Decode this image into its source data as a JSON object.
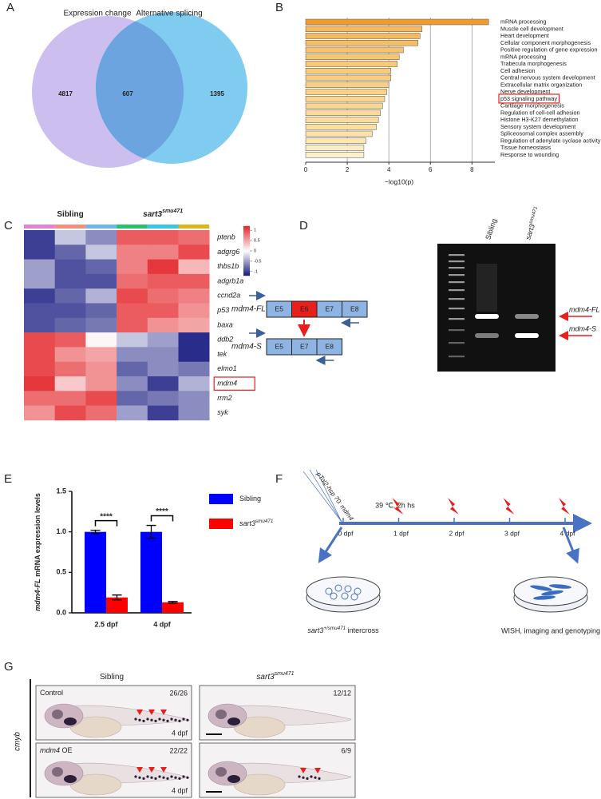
{
  "panel_labels": [
    "A",
    "B",
    "C",
    "D",
    "E",
    "F",
    "G"
  ],
  "chart_data": [
    {
      "type": "venn",
      "sets": [
        "Expression change",
        "Alternative splicing"
      ],
      "colors": [
        "#cdbef0",
        "#80ccf0",
        "#6ba4de"
      ],
      "values": [
        4817,
        607,
        1395
      ]
    },
    {
      "type": "hbar",
      "categories": [
        "mRNA processing",
        "Muscle cell development",
        "Heart development",
        "Cellular component morphogenesis",
        "Positive regulation of gene expression",
        "mRNA processing",
        "Trabecula morphogenesis",
        "Cell adhesion",
        "Central nervous system development",
        "Extracellular matrix organization",
        "Nerve development",
        "p53 signaling pathway",
        "Cartilage morphogenesis",
        "Regulation of cell-cell adhesion",
        "Histone H3-K27 demethylation",
        "Sensory system development",
        "Spliceosomal complex assembly",
        "Regulation of adenylate cyclase activity",
        "Tissue homeostasis",
        "Response to wounding"
      ],
      "values": [
        8.8,
        5.6,
        5.5,
        5.4,
        4.7,
        4.5,
        4.4,
        4.1,
        4.1,
        4.0,
        3.9,
        3.8,
        3.7,
        3.6,
        3.5,
        3.4,
        3.2,
        2.9,
        2.8,
        2.8
      ],
      "colors": [
        "#f19a30",
        "#f6b85a",
        "#f6ba5e",
        "#f7bd63",
        "#f7c26b",
        "#f8c570",
        "#f8c874",
        "#f8cb7a",
        "#f9cd7e",
        "#f9d083",
        "#f9d287",
        "#fad58c",
        "#fad790",
        "#fbda96",
        "#fbdc9b",
        "#fbdfa0",
        "#fce2a7",
        "#fce7b3",
        "#fcecc2",
        "#fdf0cc"
      ],
      "xlabel": "−log10(p)",
      "xlim": [
        0,
        9.1
      ],
      "xticks": [
        0,
        2,
        4,
        6,
        8
      ],
      "grid": true,
      "highlight": [
        11
      ],
      "highlight_color": "#e0201b"
    },
    {
      "type": "heatmap",
      "groups": [
        {
          "text": "Sibling"
        },
        {
          "text": "sart3",
          "sup": "smu471"
        }
      ],
      "column_colors": [
        "#e87ed6",
        "#f58f7b",
        "#6db6ef",
        "#2bc16a",
        "#35c6e8",
        "#d9b61c"
      ],
      "rows": [
        "ptenb",
        "adgrg6",
        "thbs1b",
        "adgrb1a",
        "ccnd2a",
        "p53",
        "baxa",
        "ddb2",
        "tek",
        "elmo1",
        "mdm4",
        "rrm2",
        "syk"
      ],
      "values": [
        [
          -1,
          -0.3,
          -0.6,
          0.9,
          0.9,
          0.8
        ],
        [
          -1,
          -0.8,
          -0.3,
          0.7,
          0.7,
          1
        ],
        [
          -0.5,
          -0.9,
          -0.8,
          0.7,
          1.1,
          0.4
        ],
        [
          -0.5,
          -0.9,
          -0.9,
          0.8,
          0.9,
          0.9
        ],
        [
          -1,
          -0.8,
          -0.4,
          1,
          0.8,
          0.7
        ],
        [
          -0.9,
          -0.9,
          -0.8,
          0.9,
          0.9,
          0.6
        ],
        [
          -0.9,
          -0.8,
          -0.7,
          0.9,
          0.6,
          0.5
        ],
        [
          1,
          0.9,
          0.05,
          -0.3,
          -0.5,
          -1.1
        ],
        [
          1,
          0.6,
          0.5,
          -0.6,
          -0.6,
          -1.1
        ],
        [
          1,
          0.8,
          0.6,
          -0.8,
          -0.6,
          -0.7
        ],
        [
          1.1,
          0.3,
          0.6,
          -0.6,
          -1,
          -0.4
        ],
        [
          0.8,
          0.8,
          1,
          -0.8,
          -0.7,
          -0.6
        ],
        [
          0.6,
          1,
          0.8,
          -0.5,
          -1,
          -0.6
        ]
      ],
      "clim": [
        -1.2,
        1.2
      ],
      "cticks": [
        1,
        0.5,
        0,
        -0.5,
        -1
      ],
      "colormap": [
        "#161980",
        "#ffffff",
        "#e3262a"
      ],
      "highlight": [
        10
      ],
      "highlight_color": "#e0201b"
    },
    {
      "type": "grouped_bar",
      "categories": [
        "2.5 dpf",
        "4 dpf"
      ],
      "series": [
        {
          "name": {
            "text": "Sibling"
          },
          "color": "#0000ff",
          "values": [
            1.0,
            1.0
          ],
          "errors": [
            0.02,
            0.08
          ]
        },
        {
          "name": {
            "text": "sart3",
            "sup": "smu471"
          },
          "color": "#ff0000",
          "values": [
            0.19,
            0.13
          ],
          "errors": [
            0.03,
            0.01
          ]
        }
      ],
      "ylabel": {
        "italic": "mdm4-FL",
        "text": " mRNA expression levels"
      },
      "ylim": [
        0,
        1.5
      ],
      "yticks": [
        {
          "value": 0,
          "label": "0.0"
        },
        {
          "value": 0.5,
          "label": "0.5"
        },
        {
          "value": 1,
          "label": "1.0"
        },
        {
          "value": 1.5,
          "label": "1.5"
        }
      ],
      "significance": [
        "****",
        "****"
      ]
    }
  ],
  "D": {
    "constructs": [
      {
        "name": "mdm4-FL",
        "exons": [
          "E5",
          "E6",
          "E7",
          "E8"
        ],
        "skipped": 1
      },
      {
        "name": "mdm4-S",
        "exons": [
          "E5",
          "E7",
          "E8"
        ]
      }
    ],
    "lanes": [
      {
        "text": "Sibling"
      },
      {
        "text": "sart3",
        "sup": "smu471"
      }
    ],
    "bands": [
      "mdm4-FL",
      "mdm4-S"
    ]
  },
  "F": {
    "plasmid": "pTol2-hsp 70: mdm4",
    "treatment": "39 ℃, 2h hs",
    "timepoints": [
      "0 dpf",
      "1 dpf",
      "2 dpf",
      "3 dpf",
      "4 dpf"
    ],
    "cross": {
      "text": "sart3",
      "sup": "+/smu471",
      "after": " intercross"
    },
    "readout": "WISH, imaging and genotyping"
  },
  "G": {
    "columns": [
      {
        "text": "Sibling"
      },
      {
        "text": "sart3",
        "sup": "smu471"
      }
    ],
    "marker": "cmyb",
    "rows": [
      {
        "name": {
          "text": "Control"
        },
        "counts": [
          "26/26",
          "12/12"
        ],
        "stage": "4 dpf"
      },
      {
        "name": {
          "italic": "mdm4",
          "text": " OE"
        },
        "counts": [
          "22/22",
          "6/9"
        ],
        "stage": "4 dpf"
      }
    ]
  }
}
